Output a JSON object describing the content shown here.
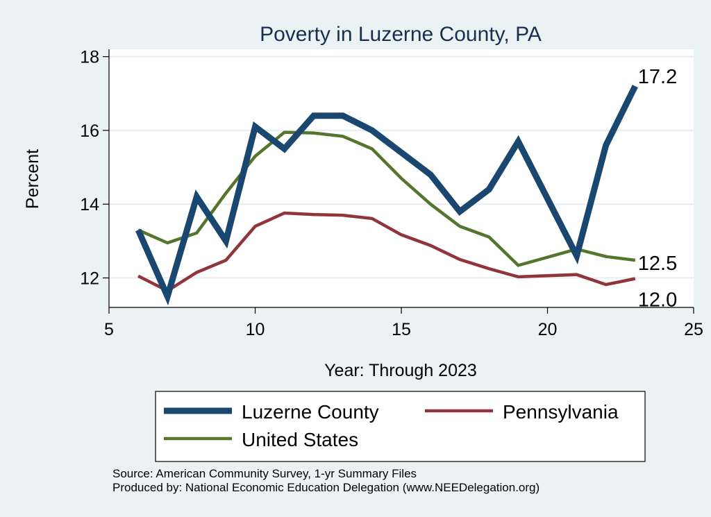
{
  "chart_data": {
    "type": "line",
    "title": "Poverty in Luzerne County, PA",
    "xlabel": "Year: Through 2023",
    "ylabel": "Percent",
    "xlim": [
      5,
      25
    ],
    "ylim": [
      11.2,
      18.2
    ],
    "xticks": [
      5,
      10,
      15,
      20,
      25
    ],
    "yticks": [
      12,
      14,
      16,
      18
    ],
    "grid": true,
    "legend_position": "bottom",
    "series": [
      {
        "name": "Luzerne County",
        "color": "#1a476f",
        "width": 9,
        "x": [
          6,
          7,
          8,
          9,
          10,
          11,
          12,
          13,
          14,
          15,
          16,
          17,
          18,
          19,
          21,
          22,
          23
        ],
        "y": [
          13.3,
          11.5,
          14.2,
          13.0,
          16.1,
          15.5,
          16.4,
          16.4,
          16.0,
          15.4,
          14.8,
          13.8,
          14.4,
          15.7,
          12.6,
          15.6,
          17.2
        ],
        "end_label": "17.2"
      },
      {
        "name": "Pennsylvania",
        "color": "#90353b",
        "width": 4.5,
        "x": [
          6,
          7,
          8,
          9,
          10,
          11,
          12,
          13,
          14,
          15,
          16,
          17,
          18,
          19,
          21,
          22,
          23
        ],
        "y": [
          12.05,
          11.65,
          12.15,
          12.48,
          13.4,
          13.76,
          13.72,
          13.7,
          13.61,
          13.17,
          12.88,
          12.5,
          12.25,
          12.03,
          12.09,
          11.82,
          11.98
        ],
        "end_label": "12.0"
      },
      {
        "name": "United States",
        "color": "#55752f",
        "width": 4.5,
        "x": [
          6,
          7,
          8,
          9,
          10,
          11,
          12,
          13,
          14,
          15,
          16,
          17,
          18,
          19,
          21,
          22,
          23
        ],
        "y": [
          13.3,
          12.95,
          13.22,
          14.3,
          15.3,
          15.95,
          15.93,
          15.84,
          15.5,
          14.7,
          14.0,
          13.4,
          13.11,
          12.34,
          12.78,
          12.58,
          12.48
        ],
        "end_label": "12.5"
      }
    ],
    "legend": [
      {
        "name": "Luzerne County",
        "color": "#1a476f",
        "width": 9
      },
      {
        "name": "Pennsylvania",
        "color": "#90353b",
        "width": 4.5
      },
      {
        "name": "United States",
        "color": "#55752f",
        "width": 4.5
      }
    ],
    "notes": [
      "Source: American Community Survey, 1-yr Summary Files",
      "Produced by: National Economic Education Delegation (www.NEEDelegation.org)"
    ]
  }
}
